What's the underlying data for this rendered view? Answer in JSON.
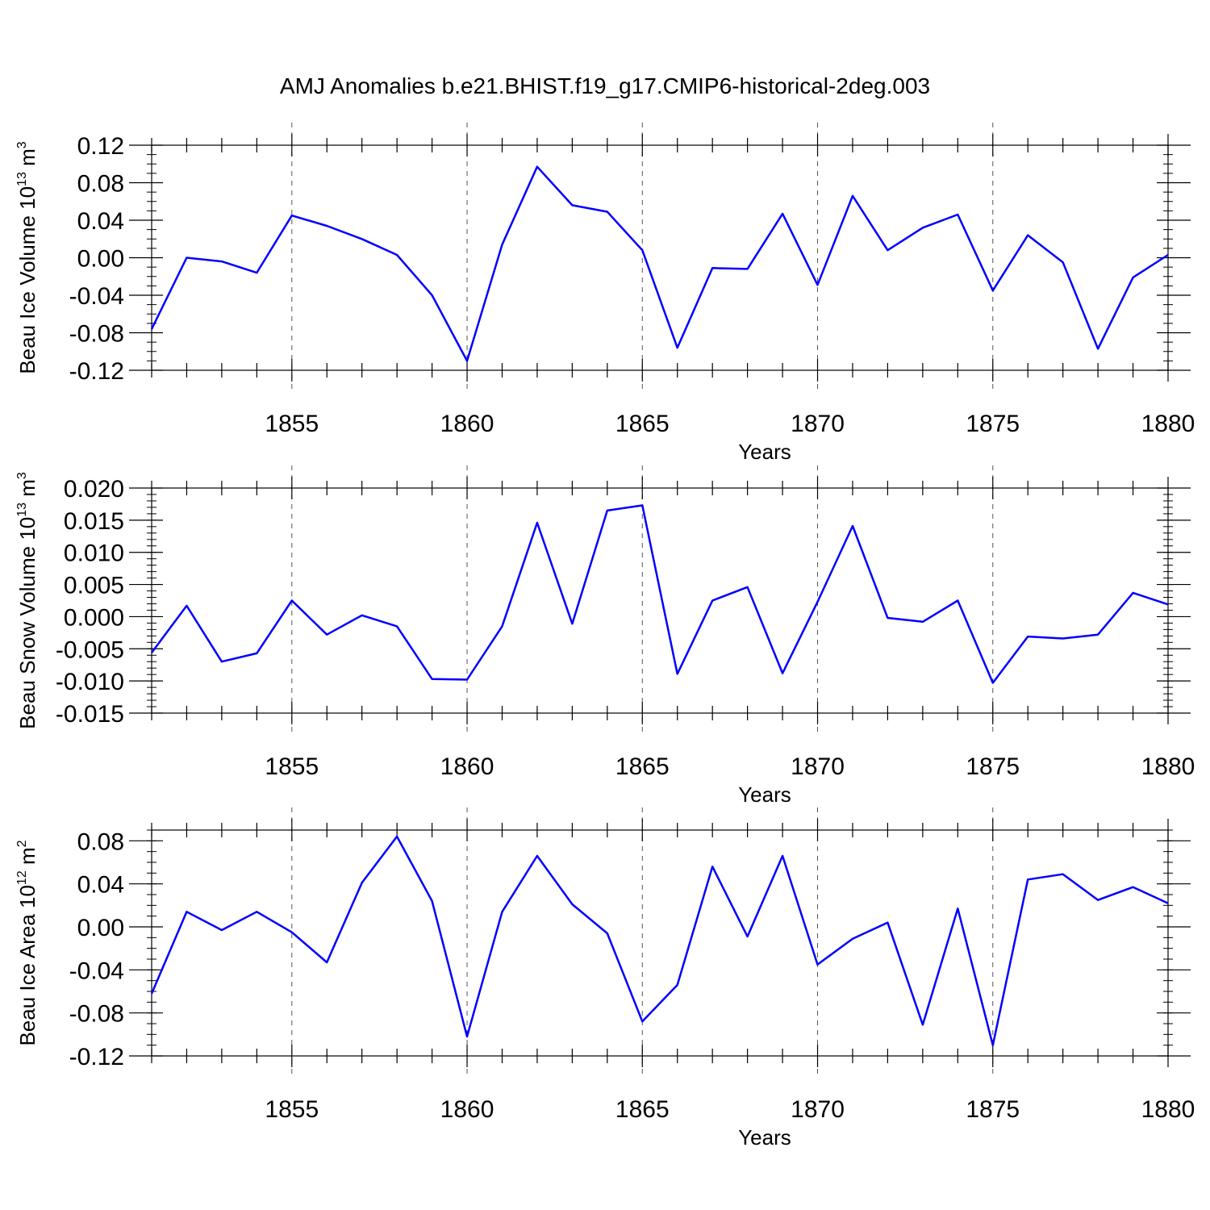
{
  "figure": {
    "title": "AMJ Anomalies b.e21.BHIST.f19_g17.CMIP6-historical-2deg.003"
  },
  "chart_data": [
    {
      "type": "line",
      "ylabel": "Beau Ice Volume 10",
      "ylabel_exp": "13",
      "ylabel_unit": " m",
      "ylabel_unit_exp": "3",
      "xlabel": "Years",
      "xlim": [
        1851,
        1880
      ],
      "ylim": [
        -0.12,
        0.12
      ],
      "ytick_values": [
        -0.12,
        -0.08,
        -0.04,
        0.0,
        0.04,
        0.08,
        0.12
      ],
      "ytick_labels": [
        "-0.12",
        "-0.08",
        "-0.04",
        "0.00",
        "0.04",
        "0.08",
        "0.12"
      ],
      "ytick_minor_step": 0.01,
      "xtick_values": [
        1855,
        1860,
        1865,
        1870,
        1875,
        1880
      ],
      "xtick_labels": [
        "1855",
        "1860",
        "1865",
        "1870",
        "1875",
        "1880"
      ],
      "grid_x": "dashed vertical lines at labeled years",
      "series": [
        {
          "color": "#0000ff",
          "x": [
            1851,
            1852,
            1853,
            1854,
            1855,
            1856,
            1857,
            1858,
            1859,
            1860,
            1861,
            1862,
            1863,
            1864,
            1865,
            1866,
            1867,
            1868,
            1869,
            1870,
            1871,
            1872,
            1873,
            1874,
            1875,
            1876,
            1877,
            1878,
            1879,
            1880
          ],
          "values": [
            -0.076,
            0.0,
            -0.004,
            -0.016,
            0.045,
            0.034,
            0.02,
            0.003,
            -0.04,
            -0.11,
            0.014,
            0.097,
            0.056,
            0.049,
            0.008,
            -0.096,
            -0.011,
            -0.012,
            0.047,
            -0.029,
            0.066,
            0.008,
            0.032,
            0.046,
            -0.035,
            0.024,
            -0.005,
            -0.097,
            -0.021,
            0.003
          ]
        }
      ]
    },
    {
      "type": "line",
      "ylabel": "Beau Snow Volume 10",
      "ylabel_exp": "13",
      "ylabel_unit": " m",
      "ylabel_unit_exp": "3",
      "xlabel": "Years",
      "xlim": [
        1851,
        1880
      ],
      "ylim": [
        -0.015,
        0.02
      ],
      "ytick_values": [
        -0.015,
        -0.01,
        -0.005,
        0.0,
        0.005,
        0.01,
        0.015,
        0.02
      ],
      "ytick_labels": [
        "-0.015",
        "-0.010",
        "-0.005",
        "0.000",
        "0.005",
        "0.010",
        "0.015",
        "0.020"
      ],
      "ytick_minor_step": 0.001,
      "xtick_values": [
        1855,
        1860,
        1865,
        1870,
        1875,
        1880
      ],
      "xtick_labels": [
        "1855",
        "1860",
        "1865",
        "1870",
        "1875",
        "1880"
      ],
      "grid_x": "dashed vertical lines at labeled years",
      "series": [
        {
          "color": "#0000ff",
          "x": [
            1851,
            1852,
            1853,
            1854,
            1855,
            1856,
            1857,
            1858,
            1859,
            1860,
            1861,
            1862,
            1863,
            1864,
            1865,
            1866,
            1867,
            1868,
            1869,
            1870,
            1871,
            1872,
            1873,
            1874,
            1875,
            1876,
            1877,
            1878,
            1879,
            1880
          ],
          "values": [
            -0.0056,
            0.0017,
            -0.007,
            -0.0057,
            0.0025,
            -0.0028,
            0.0002,
            -0.0015,
            -0.0097,
            -0.0098,
            -0.0015,
            0.0146,
            -0.0011,
            0.0165,
            0.0173,
            -0.0089,
            0.0025,
            0.0046,
            -0.0088,
            0.0023,
            0.0141,
            -0.0002,
            -0.0008,
            0.0025,
            -0.0103,
            -0.0031,
            -0.0034,
            -0.0028,
            0.0037,
            0.0019
          ]
        }
      ]
    },
    {
      "type": "line",
      "ylabel": "Beau Ice Area 10",
      "ylabel_exp": "12",
      "ylabel_unit": " m",
      "ylabel_unit_exp": "2",
      "xlabel": "Years",
      "xlim": [
        1851,
        1880
      ],
      "ylim": [
        -0.12,
        0.09
      ],
      "ytick_values": [
        -0.12,
        -0.08,
        -0.04,
        0.0,
        0.04,
        0.08
      ],
      "ytick_labels": [
        "-0.12",
        "-0.08",
        "-0.04",
        "0.00",
        "0.04",
        "0.08"
      ],
      "ytick_minor_step": 0.01,
      "xtick_values": [
        1855,
        1860,
        1865,
        1870,
        1875,
        1880
      ],
      "xtick_labels": [
        "1855",
        "1860",
        "1865",
        "1870",
        "1875",
        "1880"
      ],
      "grid_x": "dashed vertical lines at labeled years",
      "series": [
        {
          "color": "#0000ff",
          "x": [
            1851,
            1852,
            1853,
            1854,
            1855,
            1856,
            1857,
            1858,
            1859,
            1860,
            1861,
            1862,
            1863,
            1864,
            1865,
            1866,
            1867,
            1868,
            1869,
            1870,
            1871,
            1872,
            1873,
            1874,
            1875,
            1876,
            1877,
            1878,
            1879,
            1880
          ],
          "values": [
            -0.062,
            0.014,
            -0.003,
            0.014,
            -0.005,
            -0.033,
            0.041,
            0.084,
            0.024,
            -0.102,
            0.014,
            0.066,
            0.021,
            -0.006,
            -0.088,
            -0.054,
            0.056,
            -0.009,
            0.066,
            -0.035,
            -0.011,
            0.004,
            -0.091,
            0.017,
            -0.11,
            0.044,
            0.049,
            0.025,
            0.037,
            0.022
          ]
        }
      ]
    }
  ]
}
